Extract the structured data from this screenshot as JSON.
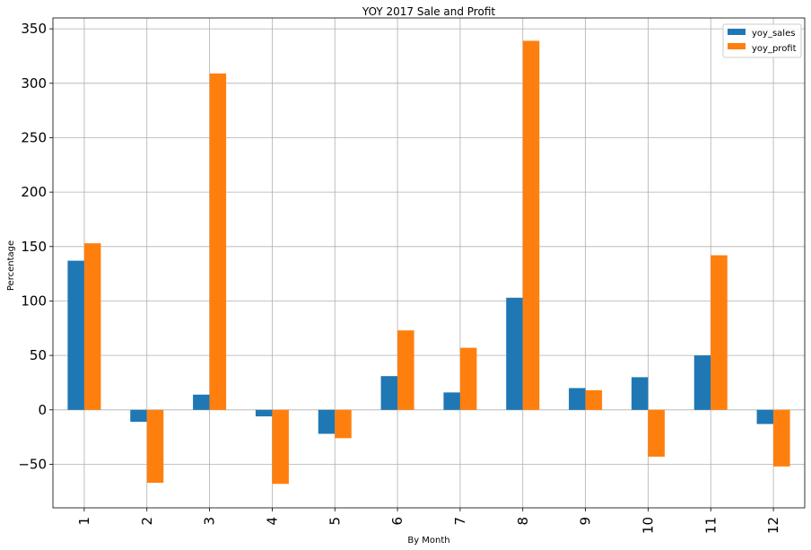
{
  "chart_data": {
    "type": "bar",
    "title": "YOY 2017 Sale and Profit",
    "xlabel": "By Month",
    "ylabel": "Percentage",
    "categories": [
      "1",
      "2",
      "3",
      "4",
      "5",
      "6",
      "7",
      "8",
      "9",
      "10",
      "11",
      "12"
    ],
    "series": [
      {
        "name": "yoy_sales",
        "color": "#1f77b4",
        "values": [
          137,
          -11,
          14,
          -6,
          -22,
          31,
          16,
          103,
          20,
          30,
          50,
          -13
        ]
      },
      {
        "name": "yoy_profit",
        "color": "#ff7f0e",
        "values": [
          153,
          -67,
          309,
          -68,
          -26,
          73,
          57,
          339,
          18,
          -43,
          142,
          -52
        ]
      }
    ],
    "ylim": [
      -90,
      360
    ],
    "yticks": [
      -50,
      0,
      50,
      100,
      150,
      200,
      250,
      300,
      350
    ],
    "ytick_labels": [
      "−50",
      "0",
      "50",
      "100",
      "150",
      "200",
      "250",
      "300",
      "350"
    ],
    "grid": true,
    "legend_position": "top-right"
  }
}
